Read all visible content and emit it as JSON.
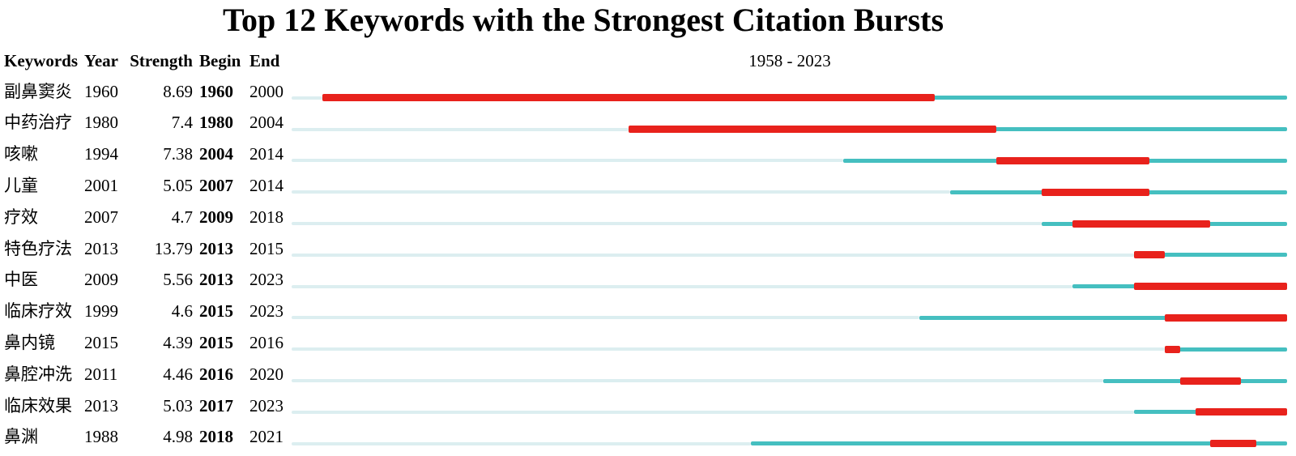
{
  "chart_data": {
    "type": "bar",
    "subtype": "citation-burst-timeline",
    "title": "Top 12 Keywords with the Strongest Citation Bursts",
    "columns": [
      "Keywords",
      "Year",
      "Strength",
      "Begin",
      "End"
    ],
    "period_label": "1958 - 2023",
    "timeline_range": [
      1958,
      2023
    ],
    "legend": [
      "pre-appearance (pale)",
      "active (teal)",
      "burst (red)"
    ],
    "colors": {
      "burst": "#e8221c",
      "active": "#45bfc0",
      "inactive": "#dceef0",
      "text": "#000000",
      "background": "#ffffff"
    },
    "rows": [
      {
        "keyword": "副鼻窦炎",
        "year": 1960,
        "strength": "8.69",
        "begin": 1960,
        "end": 2000
      },
      {
        "keyword": "中药治疗",
        "year": 1980,
        "strength": "7.4",
        "begin": 1980,
        "end": 2004
      },
      {
        "keyword": "咳嗽",
        "year": 1994,
        "strength": "7.38",
        "begin": 2004,
        "end": 2014
      },
      {
        "keyword": "儿童",
        "year": 2001,
        "strength": "5.05",
        "begin": 2007,
        "end": 2014
      },
      {
        "keyword": "疗效",
        "year": 2007,
        "strength": "4.7",
        "begin": 2009,
        "end": 2018
      },
      {
        "keyword": "特色疗法",
        "year": 2013,
        "strength": "13.79",
        "begin": 2013,
        "end": 2015
      },
      {
        "keyword": "中医",
        "year": 2009,
        "strength": "5.56",
        "begin": 2013,
        "end": 2023
      },
      {
        "keyword": "临床疗效",
        "year": 1999,
        "strength": "4.6",
        "begin": 2015,
        "end": 2023
      },
      {
        "keyword": "鼻内镜",
        "year": 2015,
        "strength": "4.39",
        "begin": 2015,
        "end": 2016
      },
      {
        "keyword": "鼻腔冲洗",
        "year": 2011,
        "strength": "4.46",
        "begin": 2016,
        "end": 2020
      },
      {
        "keyword": "临床效果",
        "year": 2013,
        "strength": "5.03",
        "begin": 2017,
        "end": 2023
      },
      {
        "keyword": "鼻渊",
        "year": 1988,
        "strength": "4.98",
        "begin": 2018,
        "end": 2021
      }
    ]
  }
}
